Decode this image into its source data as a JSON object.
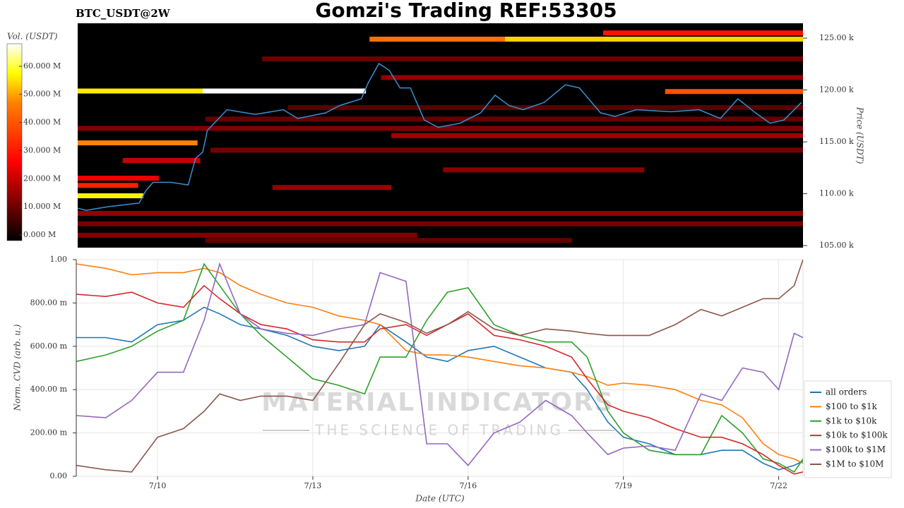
{
  "chart_data": [
    {
      "type": "heatmap",
      "title": "Gomzi's Trading REF:53305",
      "subtitle": "BTC_USDT@2W",
      "ylabel": "Price (USDT)",
      "yaxis_side": "right",
      "colorbar_label": "Vol. (USDT)",
      "colormap": "hot",
      "vlim": [
        -2000000,
        68000000
      ],
      "vticks": [
        {
          "value": 0,
          "label": "0.000 M"
        },
        {
          "value": 10000000,
          "label": "10.000 M"
        },
        {
          "value": 20000000,
          "label": "20.000 M"
        },
        {
          "value": 30000000,
          "label": "30.000 M"
        },
        {
          "value": 40000000,
          "label": "40.000 M"
        },
        {
          "value": 50000000,
          "label": "50.000 M"
        },
        {
          "value": 60000000,
          "label": "60.000 M"
        }
      ],
      "xlim": [
        8.43,
        22.47
      ],
      "ylim": [
        104800,
        126430
      ],
      "yticks": [
        {
          "value": 105000,
          "label": "105.00 k"
        },
        {
          "value": 110000,
          "label": "110.00 k"
        },
        {
          "value": 115000,
          "label": "115.00 k"
        },
        {
          "value": 120000,
          "label": "120.00 k"
        },
        {
          "value": 125000,
          "label": "125.00 k"
        }
      ],
      "bands": [
        {
          "price": 119900,
          "start": 8.43,
          "end": 10.85,
          "volume": 55000000
        },
        {
          "price": 119900,
          "start": 10.85,
          "end": 14.01,
          "volume": 68000000
        },
        {
          "price": 124900,
          "start": 14.08,
          "end": 16.7,
          "volume": 40000000
        },
        {
          "price": 124900,
          "start": 16.7,
          "end": 22.47,
          "volume": 52000000
        },
        {
          "price": 125500,
          "start": 18.6,
          "end": 22.47,
          "volume": 28000000
        },
        {
          "price": 114900,
          "start": 8.43,
          "end": 10.75,
          "volume": 42000000
        },
        {
          "price": 109800,
          "start": 8.43,
          "end": 9.7,
          "volume": 56000000
        },
        {
          "price": 119850,
          "start": 19.8,
          "end": 22.47,
          "volume": 36000000
        },
        {
          "price": 110800,
          "start": 8.43,
          "end": 9.6,
          "volume": 30000000
        },
        {
          "price": 111500,
          "start": 8.43,
          "end": 10.0,
          "volume": 24000000
        },
        {
          "price": 113200,
          "start": 9.3,
          "end": 10.8,
          "volume": 20000000
        },
        {
          "price": 121200,
          "start": 14.3,
          "end": 22.47,
          "volume": 14000000
        },
        {
          "price": 123000,
          "start": 12.0,
          "end": 22.47,
          "volume": 10000000
        },
        {
          "price": 116300,
          "start": 8.43,
          "end": 22.47,
          "volume": 12000000
        },
        {
          "price": 115600,
          "start": 14.5,
          "end": 22.47,
          "volume": 16000000
        },
        {
          "price": 114200,
          "start": 11.0,
          "end": 22.47,
          "volume": 11000000
        },
        {
          "price": 112300,
          "start": 15.5,
          "end": 19.4,
          "volume": 13000000
        },
        {
          "price": 110600,
          "start": 12.2,
          "end": 14.5,
          "volume": 15000000
        },
        {
          "price": 108100,
          "start": 8.43,
          "end": 22.47,
          "volume": 14000000
        },
        {
          "price": 107100,
          "start": 8.43,
          "end": 22.47,
          "volume": 11000000
        },
        {
          "price": 106000,
          "start": 8.43,
          "end": 15.0,
          "volume": 12000000
        },
        {
          "price": 105500,
          "start": 10.9,
          "end": 18.0,
          "volume": 9000000
        },
        {
          "price": 117200,
          "start": 10.9,
          "end": 22.47,
          "volume": 9000000
        },
        {
          "price": 118300,
          "start": 12.5,
          "end": 22.47,
          "volume": 8000000
        }
      ],
      "series": [
        {
          "color": "#3a8fd0",
          "x": [
            8.43,
            8.6,
            9.0,
            9.62,
            9.75,
            9.89,
            10.23,
            10.57,
            10.71,
            10.85,
            10.94,
            11.32,
            11.87,
            12.41,
            12.69,
            13.23,
            13.5,
            13.92,
            14.05,
            14.26,
            14.46,
            14.67,
            14.87,
            15.14,
            15.41,
            15.83,
            16.23,
            16.51,
            16.78,
            17.05,
            17.46,
            17.87,
            18.14,
            18.55,
            18.83,
            19.24,
            19.92,
            20.46,
            20.87,
            21.21,
            21.55,
            21.83,
            22.1,
            22.44
          ],
          "values": [
            108600,
            108400,
            108740,
            109100,
            110300,
            111100,
            111100,
            110850,
            113400,
            114000,
            116100,
            118100,
            117650,
            118100,
            117250,
            117800,
            118500,
            119150,
            120650,
            122550,
            121900,
            120200,
            120200,
            117100,
            116400,
            116800,
            117800,
            119500,
            118500,
            118100,
            118800,
            120500,
            120200,
            117800,
            117450,
            118100,
            117900,
            118100,
            117250,
            119150,
            117800,
            116800,
            117100,
            118800
          ]
        }
      ]
    },
    {
      "type": "line",
      "xlabel": "Date (UTC)",
      "ylabel": "Norm. CVD (arb. u.)",
      "xlim": [
        8.43,
        22.47
      ],
      "ylim": [
        0,
        1
      ],
      "xticks": [
        {
          "value": 10,
          "label": "7/10"
        },
        {
          "value": 13,
          "label": "7/13"
        },
        {
          "value": 16,
          "label": "7/16"
        },
        {
          "value": 19,
          "label": "7/19"
        },
        {
          "value": 22,
          "label": "7/22"
        }
      ],
      "yticks": [
        {
          "value": 0,
          "label": "0.00"
        },
        {
          "value": 0.2,
          "label": "200.00 m"
        },
        {
          "value": 0.4,
          "label": "400.00 m"
        },
        {
          "value": 0.6,
          "label": "600.00 m"
        },
        {
          "value": 0.8,
          "label": "800.00 m"
        },
        {
          "value": 1,
          "label": "1.00"
        }
      ],
      "grid": true,
      "legend": "lower right",
      "annotations": [
        "MATERIAL INDICATORS",
        "THE SCIENCE OF TRADING"
      ],
      "x": [
        8.43,
        9,
        9.5,
        10,
        10.5,
        10.9,
        11.2,
        11.6,
        12,
        12.5,
        13,
        13.5,
        14,
        14.3,
        14.8,
        15.2,
        15.6,
        16,
        16.5,
        17,
        17.5,
        18,
        18.3,
        18.7,
        19,
        19.5,
        20,
        20.5,
        20.9,
        21.3,
        21.7,
        22,
        22.3,
        22.47
      ],
      "series": [
        {
          "name": "all orders",
          "color": "#1f77b4",
          "values": [
            0.64,
            0.64,
            0.62,
            0.7,
            0.72,
            0.78,
            0.75,
            0.7,
            0.68,
            0.65,
            0.6,
            0.58,
            0.6,
            0.7,
            0.62,
            0.55,
            0.53,
            0.58,
            0.6,
            0.55,
            0.5,
            0.48,
            0.4,
            0.25,
            0.18,
            0.15,
            0.1,
            0.1,
            0.12,
            0.12,
            0.06,
            0.03,
            0.05,
            0.07
          ]
        },
        {
          "name": "$100 to $1k",
          "color": "#ff7f0e",
          "values": [
            0.98,
            0.96,
            0.93,
            0.94,
            0.94,
            0.96,
            0.94,
            0.88,
            0.84,
            0.8,
            0.78,
            0.74,
            0.72,
            0.7,
            0.58,
            0.56,
            0.56,
            0.55,
            0.53,
            0.51,
            0.5,
            0.48,
            0.46,
            0.42,
            0.43,
            0.42,
            0.4,
            0.35,
            0.33,
            0.27,
            0.15,
            0.1,
            0.08,
            0.06
          ]
        },
        {
          "name": "$1k to $10k",
          "color": "#2ca02c",
          "values": [
            0.53,
            0.56,
            0.6,
            0.67,
            0.72,
            0.98,
            0.88,
            0.75,
            0.65,
            0.55,
            0.45,
            0.42,
            0.38,
            0.55,
            0.55,
            0.72,
            0.85,
            0.87,
            0.7,
            0.65,
            0.62,
            0.62,
            0.55,
            0.3,
            0.2,
            0.12,
            0.1,
            0.1,
            0.28,
            0.2,
            0.08,
            0.06,
            0.02,
            0.08
          ]
        },
        {
          "name": "$10k to $100k",
          "color": "#d62728",
          "values": [
            0.84,
            0.83,
            0.85,
            0.8,
            0.78,
            0.88,
            0.82,
            0.75,
            0.7,
            0.68,
            0.63,
            0.62,
            0.62,
            0.68,
            0.7,
            0.65,
            0.7,
            0.75,
            0.65,
            0.63,
            0.6,
            0.55,
            0.45,
            0.33,
            0.3,
            0.27,
            0.22,
            0.18,
            0.18,
            0.15,
            0.1,
            0.05,
            0.01,
            0.02
          ]
        },
        {
          "name": "$100k to $1M",
          "color": "#9467bd",
          "values": [
            0.28,
            0.27,
            0.35,
            0.48,
            0.48,
            0.72,
            0.98,
            0.75,
            0.68,
            0.66,
            0.65,
            0.68,
            0.7,
            0.94,
            0.9,
            0.15,
            0.15,
            0.05,
            0.2,
            0.25,
            0.35,
            0.28,
            0.2,
            0.1,
            0.13,
            0.14,
            0.12,
            0.38,
            0.35,
            0.5,
            0.48,
            0.4,
            0.66,
            0.64
          ]
        },
        {
          "name": "$1M to $10M",
          "color": "#8c564b",
          "values": [
            0.05,
            0.03,
            0.02,
            0.18,
            0.22,
            0.3,
            0.38,
            0.35,
            0.37,
            0.37,
            0.35,
            0.52,
            0.7,
            0.75,
            0.71,
            0.66,
            0.7,
            0.76,
            0.68,
            0.65,
            0.68,
            0.67,
            0.66,
            0.65,
            0.65,
            0.65,
            0.7,
            0.77,
            0.74,
            0.78,
            0.82,
            0.82,
            0.88,
            1.0
          ]
        }
      ]
    }
  ]
}
